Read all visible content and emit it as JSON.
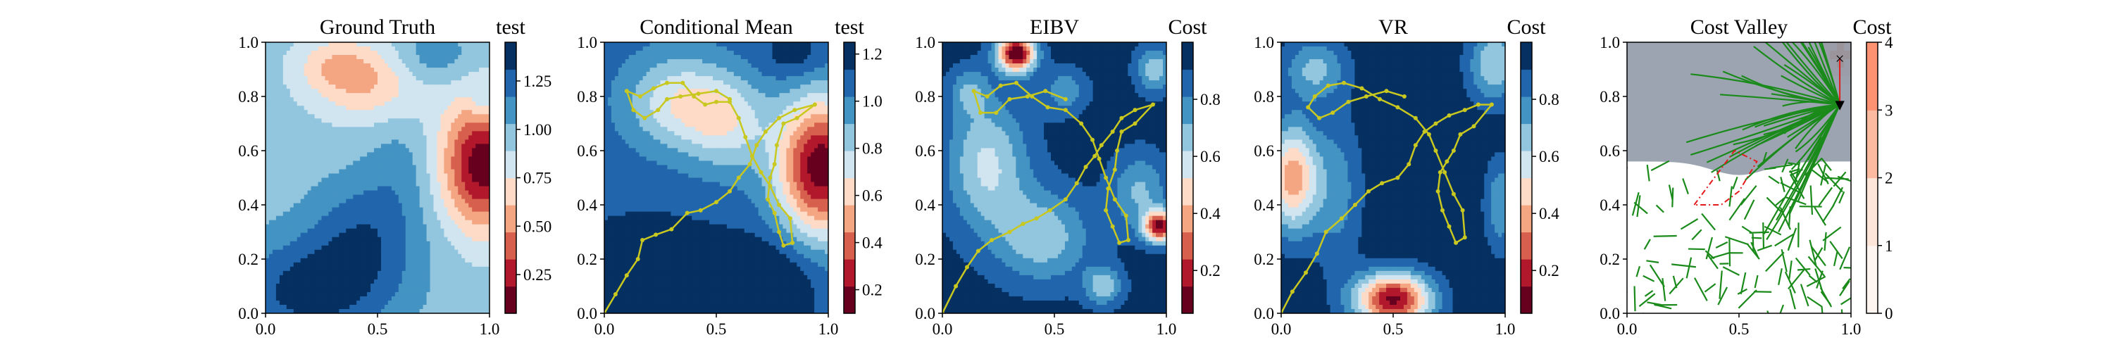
{
  "chart_data": [
    {
      "type": "heatmap",
      "title": "Ground Truth",
      "colorbar_label": "test",
      "colormap": "RdBu (red=low, blue=high)",
      "xlim": [
        0,
        1
      ],
      "ylim": [
        0,
        1
      ],
      "xticks": [
        "0.0",
        "0.5",
        "1.0"
      ],
      "yticks": [
        "0.0",
        "0.2",
        "0.4",
        "0.6",
        "0.8",
        "1.0"
      ],
      "cbar_range": [
        0.05,
        1.45
      ],
      "cbar_ticks": [
        "0.25",
        "0.50",
        "0.75",
        "1.00",
        "1.25"
      ],
      "cbar_tick_values": [
        0.25,
        0.5,
        0.75,
        1.0,
        1.25
      ],
      "field": {
        "base": 0.95,
        "blobs": [
          {
            "x": 0.97,
            "y": 0.55,
            "amp": -0.85,
            "sx": 0.13,
            "sy": 0.17
          },
          {
            "x": 0.2,
            "y": 0.08,
            "amp": 0.42,
            "sx": 0.26,
            "sy": 0.14
          },
          {
            "x": 0.45,
            "y": 0.3,
            "amp": 0.3,
            "sx": 0.18,
            "sy": 0.15
          },
          {
            "x": 0.45,
            "y": 0.85,
            "amp": -0.33,
            "sx": 0.17,
            "sy": 0.1
          },
          {
            "x": 0.3,
            "y": 0.92,
            "amp": -0.22,
            "sx": 0.12,
            "sy": 0.07
          },
          {
            "x": 0.75,
            "y": 0.95,
            "amp": 0.2,
            "sx": 0.12,
            "sy": 0.07
          },
          {
            "x": 0.98,
            "y": 0.78,
            "amp": 0.2,
            "sx": 0.05,
            "sy": 0.05
          },
          {
            "x": 0.6,
            "y": 0.55,
            "amp": 0.12,
            "sx": 0.1,
            "sy": 0.12
          }
        ]
      },
      "path": []
    },
    {
      "type": "heatmap",
      "title": "Conditional Mean",
      "colorbar_label": "test",
      "colormap": "RdBu (red=low, blue=high)",
      "xlim": [
        0,
        1
      ],
      "ylim": [
        0,
        1
      ],
      "xticks": [
        "0.0",
        "0.5",
        "1.0"
      ],
      "yticks": [
        "0.0",
        "0.2",
        "0.4",
        "0.6",
        "0.8",
        "1.0"
      ],
      "cbar_range": [
        0.1,
        1.25
      ],
      "cbar_ticks": [
        "0.2",
        "0.4",
        "0.6",
        "0.8",
        "1.0",
        "1.2"
      ],
      "cbar_tick_values": [
        0.2,
        0.4,
        0.6,
        0.8,
        1.0,
        1.2
      ],
      "field": {
        "base": 1.08,
        "blobs": [
          {
            "x": 0.97,
            "y": 0.54,
            "amp": -0.95,
            "sx": 0.14,
            "sy": 0.18
          },
          {
            "x": 0.33,
            "y": 0.78,
            "amp": -0.38,
            "sx": 0.16,
            "sy": 0.12
          },
          {
            "x": 0.55,
            "y": 0.7,
            "amp": -0.32,
            "sx": 0.13,
            "sy": 0.12
          },
          {
            "x": 0.2,
            "y": 0.1,
            "amp": 0.3,
            "sx": 0.25,
            "sy": 0.15
          },
          {
            "x": 0.72,
            "y": 0.1,
            "amp": 0.25,
            "sx": 0.15,
            "sy": 0.12
          },
          {
            "x": 0.85,
            "y": 0.95,
            "amp": 0.15,
            "sx": 0.1,
            "sy": 0.06
          }
        ]
      },
      "path": [
        [
          0.0,
          0.0
        ],
        [
          0.05,
          0.07
        ],
        [
          0.1,
          0.14
        ],
        [
          0.15,
          0.2
        ],
        [
          0.17,
          0.27
        ],
        [
          0.23,
          0.29
        ],
        [
          0.3,
          0.31
        ],
        [
          0.37,
          0.37
        ],
        [
          0.43,
          0.38
        ],
        [
          0.5,
          0.41
        ],
        [
          0.56,
          0.45
        ],
        [
          0.6,
          0.5
        ],
        [
          0.65,
          0.55
        ],
        [
          0.68,
          0.62
        ],
        [
          0.72,
          0.67
        ],
        [
          0.78,
          0.72
        ],
        [
          0.85,
          0.75
        ],
        [
          0.94,
          0.77
        ],
        [
          0.86,
          0.72
        ],
        [
          0.8,
          0.7
        ],
        [
          0.77,
          0.62
        ],
        [
          0.76,
          0.55
        ],
        [
          0.74,
          0.5
        ],
        [
          0.73,
          0.42
        ],
        [
          0.76,
          0.37
        ],
        [
          0.78,
          0.3
        ],
        [
          0.8,
          0.25
        ],
        [
          0.84,
          0.26
        ],
        [
          0.83,
          0.35
        ],
        [
          0.78,
          0.4
        ],
        [
          0.74,
          0.47
        ],
        [
          0.7,
          0.52
        ],
        [
          0.66,
          0.58
        ],
        [
          0.63,
          0.65
        ],
        [
          0.6,
          0.72
        ],
        [
          0.56,
          0.78
        ],
        [
          0.5,
          0.78
        ],
        [
          0.45,
          0.77
        ],
        [
          0.4,
          0.8
        ],
        [
          0.35,
          0.85
        ],
        [
          0.28,
          0.85
        ],
        [
          0.22,
          0.83
        ],
        [
          0.16,
          0.8
        ],
        [
          0.1,
          0.82
        ],
        [
          0.13,
          0.75
        ],
        [
          0.18,
          0.72
        ],
        [
          0.24,
          0.75
        ],
        [
          0.28,
          0.79
        ],
        [
          0.34,
          0.8
        ],
        [
          0.42,
          0.81
        ],
        [
          0.5,
          0.82
        ],
        [
          0.56,
          0.79
        ]
      ]
    },
    {
      "type": "heatmap",
      "title": "EIBV",
      "colorbar_label": "Cost",
      "colormap": "RdBu (red=low, blue=high)",
      "xlim": [
        0,
        1
      ],
      "ylim": [
        0,
        1
      ],
      "xticks": [
        "0.0",
        "0.5",
        "1.0"
      ],
      "yticks": [
        "0.0",
        "0.2",
        "0.4",
        "0.6",
        "0.8",
        "1.0"
      ],
      "cbar_range": [
        0.05,
        1.0
      ],
      "cbar_ticks": [
        "0.2",
        "0.4",
        "0.6",
        "0.8"
      ],
      "cbar_tick_values": [
        0.2,
        0.4,
        0.6,
        0.8
      ],
      "field": {
        "base": 0.95,
        "blobs": [
          {
            "x": 0.33,
            "y": 0.96,
            "amp": -0.9,
            "sx": 0.06,
            "sy": 0.05
          },
          {
            "x": 0.97,
            "y": 0.32,
            "amp": -0.8,
            "sx": 0.05,
            "sy": 0.04
          },
          {
            "x": 0.2,
            "y": 0.55,
            "amp": -0.35,
            "sx": 0.13,
            "sy": 0.17
          },
          {
            "x": 0.88,
            "y": 0.45,
            "amp": -0.25,
            "sx": 0.09,
            "sy": 0.1
          },
          {
            "x": 0.95,
            "y": 0.9,
            "amp": -0.3,
            "sx": 0.06,
            "sy": 0.06
          },
          {
            "x": 0.45,
            "y": 0.28,
            "amp": -0.3,
            "sx": 0.15,
            "sy": 0.12
          },
          {
            "x": 0.72,
            "y": 0.1,
            "amp": -0.3,
            "sx": 0.06,
            "sy": 0.05
          },
          {
            "x": 0.55,
            "y": 0.82,
            "amp": -0.2,
            "sx": 0.07,
            "sy": 0.06
          },
          {
            "x": 0.12,
            "y": 0.82,
            "amp": -0.2,
            "sx": 0.06,
            "sy": 0.06
          }
        ]
      },
      "path": [
        [
          0.0,
          0.0
        ],
        [
          0.06,
          0.1
        ],
        [
          0.11,
          0.17
        ],
        [
          0.16,
          0.23
        ],
        [
          0.22,
          0.27
        ],
        [
          0.3,
          0.3
        ],
        [
          0.36,
          0.33
        ],
        [
          0.42,
          0.35
        ],
        [
          0.48,
          0.38
        ],
        [
          0.55,
          0.42
        ],
        [
          0.6,
          0.48
        ],
        [
          0.64,
          0.54
        ],
        [
          0.68,
          0.58
        ],
        [
          0.71,
          0.62
        ],
        [
          0.76,
          0.67
        ],
        [
          0.8,
          0.72
        ],
        [
          0.86,
          0.75
        ],
        [
          0.94,
          0.77
        ],
        [
          0.86,
          0.7
        ],
        [
          0.8,
          0.67
        ],
        [
          0.78,
          0.6
        ],
        [
          0.77,
          0.53
        ],
        [
          0.74,
          0.46
        ],
        [
          0.73,
          0.38
        ],
        [
          0.76,
          0.32
        ],
        [
          0.79,
          0.26
        ],
        [
          0.83,
          0.27
        ],
        [
          0.82,
          0.36
        ],
        [
          0.77,
          0.42
        ],
        [
          0.73,
          0.5
        ],
        [
          0.7,
          0.57
        ],
        [
          0.67,
          0.64
        ],
        [
          0.62,
          0.7
        ],
        [
          0.55,
          0.75
        ],
        [
          0.47,
          0.76
        ],
        [
          0.4,
          0.8
        ],
        [
          0.33,
          0.85
        ],
        [
          0.26,
          0.84
        ],
        [
          0.2,
          0.8
        ],
        [
          0.14,
          0.82
        ],
        [
          0.17,
          0.74
        ],
        [
          0.24,
          0.74
        ],
        [
          0.3,
          0.79
        ],
        [
          0.38,
          0.8
        ],
        [
          0.46,
          0.82
        ],
        [
          0.55,
          0.79
        ]
      ]
    },
    {
      "type": "heatmap",
      "title": "VR",
      "colorbar_label": "Cost",
      "colormap": "RdBu (red=low, blue=high)",
      "xlim": [
        0,
        1
      ],
      "ylim": [
        0,
        1
      ],
      "xticks": [
        "0.0",
        "0.5",
        "1.0"
      ],
      "yticks": [
        "0.0",
        "0.2",
        "0.4",
        "0.6",
        "0.8",
        "1.0"
      ],
      "cbar_range": [
        0.05,
        1.0
      ],
      "cbar_ticks": [
        "0.2",
        "0.4",
        "0.6",
        "0.8"
      ],
      "cbar_tick_values": [
        0.2,
        0.4,
        0.6,
        0.8
      ],
      "field": {
        "base": 0.97,
        "blobs": [
          {
            "x": 0.5,
            "y": 0.05,
            "amp": -0.85,
            "sx": 0.12,
            "sy": 0.07
          },
          {
            "x": 0.05,
            "y": 0.5,
            "amp": -0.6,
            "sx": 0.08,
            "sy": 0.14
          },
          {
            "x": 0.95,
            "y": 0.92,
            "amp": -0.35,
            "sx": 0.08,
            "sy": 0.1
          },
          {
            "x": 0.98,
            "y": 0.4,
            "amp": -0.25,
            "sx": 0.05,
            "sy": 0.12
          },
          {
            "x": 0.15,
            "y": 0.9,
            "amp": -0.28,
            "sx": 0.1,
            "sy": 0.08
          },
          {
            "x": 0.25,
            "y": 0.45,
            "amp": -0.2,
            "sx": 0.08,
            "sy": 0.2
          }
        ]
      },
      "path": [
        [
          0.0,
          0.0
        ],
        [
          0.05,
          0.08
        ],
        [
          0.11,
          0.15
        ],
        [
          0.16,
          0.22
        ],
        [
          0.2,
          0.3
        ],
        [
          0.27,
          0.35
        ],
        [
          0.33,
          0.4
        ],
        [
          0.39,
          0.45
        ],
        [
          0.45,
          0.48
        ],
        [
          0.52,
          0.5
        ],
        [
          0.57,
          0.55
        ],
        [
          0.6,
          0.62
        ],
        [
          0.64,
          0.67
        ],
        [
          0.69,
          0.7
        ],
        [
          0.75,
          0.73
        ],
        [
          0.82,
          0.75
        ],
        [
          0.88,
          0.77
        ],
        [
          0.94,
          0.77
        ],
        [
          0.86,
          0.69
        ],
        [
          0.8,
          0.66
        ],
        [
          0.77,
          0.6
        ],
        [
          0.74,
          0.56
        ],
        [
          0.71,
          0.52
        ],
        [
          0.7,
          0.45
        ],
        [
          0.72,
          0.38
        ],
        [
          0.75,
          0.32
        ],
        [
          0.78,
          0.26
        ],
        [
          0.82,
          0.28
        ],
        [
          0.81,
          0.38
        ],
        [
          0.77,
          0.44
        ],
        [
          0.73,
          0.52
        ],
        [
          0.69,
          0.6
        ],
        [
          0.66,
          0.66
        ],
        [
          0.6,
          0.72
        ],
        [
          0.52,
          0.76
        ],
        [
          0.44,
          0.79
        ],
        [
          0.36,
          0.83
        ],
        [
          0.28,
          0.85
        ],
        [
          0.21,
          0.84
        ],
        [
          0.15,
          0.8
        ],
        [
          0.12,
          0.76
        ],
        [
          0.17,
          0.72
        ],
        [
          0.23,
          0.74
        ],
        [
          0.3,
          0.78
        ],
        [
          0.38,
          0.8
        ],
        [
          0.47,
          0.82
        ],
        [
          0.55,
          0.8
        ]
      ]
    },
    {
      "type": "heatmap",
      "title": "Cost Valley",
      "colorbar_label": "Cost",
      "colormap": "Reds (white=low, red=high)",
      "xlim": [
        0,
        1
      ],
      "ylim": [
        0,
        1
      ],
      "xticks": [
        "0.0",
        "0.5",
        "1.0"
      ],
      "yticks": [
        "0.0",
        "0.2",
        "0.4",
        "0.6",
        "0.8",
        "1.0"
      ],
      "cbar_range": [
        0,
        4
      ],
      "cbar_ticks": [
        "0",
        "1",
        "2",
        "3",
        "4"
      ],
      "cbar_tick_values": [
        0,
        1,
        2,
        3,
        4
      ],
      "shaded_region": "rows y >= 0.56 shaded grey, dipping around x 0.4-0.6",
      "start_marker": {
        "x": 0.95,
        "y": 0.94,
        "symbol": "×"
      },
      "end_marker": {
        "x": 0.95,
        "y": 0.77,
        "symbol": "▼"
      },
      "obstacle_polygon": [
        [
          0.3,
          0.4
        ],
        [
          0.48,
          0.6
        ],
        [
          0.58,
          0.56
        ],
        [
          0.5,
          0.45
        ],
        [
          0.42,
          0.4
        ],
        [
          0.3,
          0.4
        ]
      ],
      "field": {
        "base": 0,
        "blobs": [
          {
            "x": 0.95,
            "y": 0.95,
            "amp": 0.6,
            "sx": 0.06,
            "sy": 0.06
          }
        ]
      },
      "path": []
    }
  ]
}
